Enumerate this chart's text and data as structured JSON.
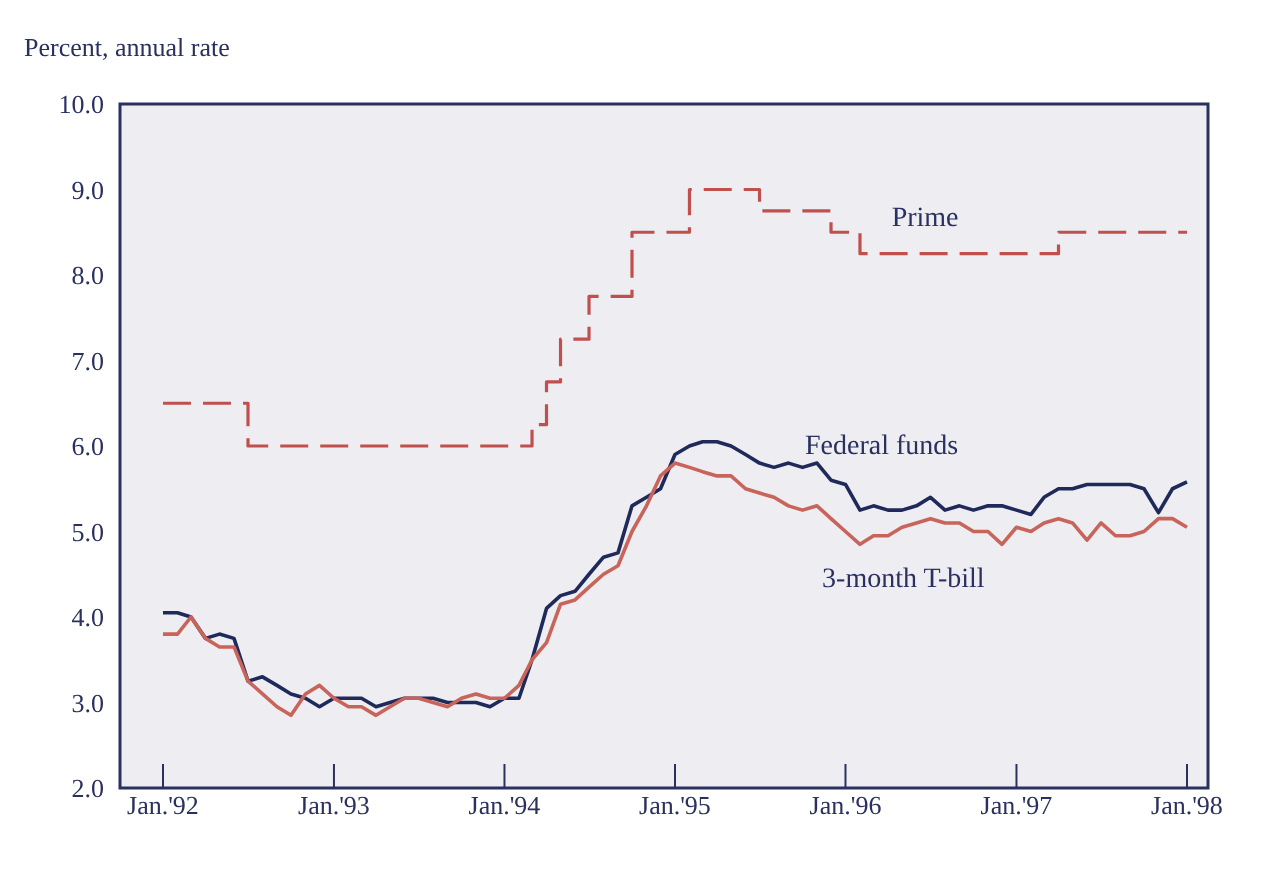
{
  "chart_data": {
    "type": "line",
    "ylabel": "Percent, annual rate",
    "xlim": [
      "1991-10-01",
      "1998-02-15"
    ],
    "xticks": [
      {
        "value": "1992-01",
        "label": "Jan.'92"
      },
      {
        "value": "1993-01",
        "label": "Jan.'93"
      },
      {
        "value": "1994-01",
        "label": "Jan.'94"
      },
      {
        "value": "1995-01",
        "label": "Jan.'95"
      },
      {
        "value": "1996-01",
        "label": "Jan.'96"
      },
      {
        "value": "1997-01",
        "label": "Jan.'97"
      },
      {
        "value": "1998-01",
        "label": "Jan.'98"
      }
    ],
    "ylim": [
      2,
      10
    ],
    "yticks": [
      {
        "value": 2,
        "label": "2.0"
      },
      {
        "value": 3,
        "label": "3.0"
      },
      {
        "value": 4,
        "label": "4.0"
      },
      {
        "value": 5,
        "label": "5.0"
      },
      {
        "value": 6,
        "label": "6.0"
      },
      {
        "value": 7,
        "label": "7.0"
      },
      {
        "value": 8,
        "label": "8.0"
      },
      {
        "value": 9,
        "label": "9.0"
      },
      {
        "value": 10,
        "label": "10.0"
      }
    ],
    "grid": false,
    "legend": false,
    "marker": "none",
    "series": [
      {
        "name": "Prime",
        "type": "step",
        "line_style": "dashed",
        "color": "#c0504d",
        "x": [
          "1992-01",
          "1992-07",
          "1994-03",
          "1994-04",
          "1994-05",
          "1994-07",
          "1994-10",
          "1995-02",
          "1995-07",
          "1995-12",
          "1996-02",
          "1997-04",
          "1998-01"
        ],
        "values": [
          6.5,
          6.0,
          6.25,
          6.75,
          7.25,
          7.75,
          8.5,
          9.0,
          8.75,
          8.5,
          8.25,
          8.5,
          8.5
        ]
      },
      {
        "name": "Federal funds",
        "type": "line",
        "line_style": "solid",
        "color": "#1f2a5a",
        "x": [
          "1992-01",
          "1992-02",
          "1992-03",
          "1992-04",
          "1992-05",
          "1992-06",
          "1992-07",
          "1992-08",
          "1992-09",
          "1992-10",
          "1992-11",
          "1992-12",
          "1993-01",
          "1993-02",
          "1993-03",
          "1993-04",
          "1993-05",
          "1993-06",
          "1993-07",
          "1993-08",
          "1993-09",
          "1993-10",
          "1993-11",
          "1993-12",
          "1994-01",
          "1994-02",
          "1994-03",
          "1994-04",
          "1994-05",
          "1994-06",
          "1994-07",
          "1994-08",
          "1994-09",
          "1994-10",
          "1994-11",
          "1994-12",
          "1995-01",
          "1995-02",
          "1995-03",
          "1995-04",
          "1995-05",
          "1995-06",
          "1995-07",
          "1995-08",
          "1995-09",
          "1995-10",
          "1995-11",
          "1995-12",
          "1996-01",
          "1996-02",
          "1996-03",
          "1996-04",
          "1996-05",
          "1996-06",
          "1996-07",
          "1996-08",
          "1996-09",
          "1996-10",
          "1996-11",
          "1996-12",
          "1997-01",
          "1997-02",
          "1997-03",
          "1997-04",
          "1997-05",
          "1997-06",
          "1997-07",
          "1997-08",
          "1997-09",
          "1997-10",
          "1997-11",
          "1997-12",
          "1998-01"
        ],
        "values": [
          4.05,
          4.05,
          4.0,
          3.75,
          3.8,
          3.75,
          3.25,
          3.3,
          3.2,
          3.1,
          3.05,
          2.95,
          3.05,
          3.05,
          3.05,
          2.95,
          3.0,
          3.05,
          3.05,
          3.05,
          3.0,
          3.0,
          3.0,
          2.95,
          3.05,
          3.05,
          3.5,
          4.1,
          4.25,
          4.3,
          4.5,
          4.7,
          4.75,
          5.3,
          5.4,
          5.5,
          5.9,
          6.0,
          6.05,
          6.05,
          6.0,
          5.9,
          5.8,
          5.75,
          5.8,
          5.75,
          5.8,
          5.6,
          5.55,
          5.25,
          5.3,
          5.25,
          5.25,
          5.3,
          5.4,
          5.25,
          5.3,
          5.25,
          5.3,
          5.3,
          5.25,
          5.2,
          5.4,
          5.5,
          5.5,
          5.55,
          5.55,
          5.55,
          5.55,
          5.5,
          5.22,
          5.5,
          5.58
        ]
      },
      {
        "name": "3-month T-bill",
        "type": "line",
        "line_style": "solid",
        "color": "#c8645a",
        "x": [
          "1992-01",
          "1992-02",
          "1992-03",
          "1992-04",
          "1992-05",
          "1992-06",
          "1992-07",
          "1992-08",
          "1992-09",
          "1992-10",
          "1992-11",
          "1992-12",
          "1993-01",
          "1993-02",
          "1993-03",
          "1993-04",
          "1993-05",
          "1993-06",
          "1993-07",
          "1993-08",
          "1993-09",
          "1993-10",
          "1993-11",
          "1993-12",
          "1994-01",
          "1994-02",
          "1994-03",
          "1994-04",
          "1994-05",
          "1994-06",
          "1994-07",
          "1994-08",
          "1994-09",
          "1994-10",
          "1994-11",
          "1994-12",
          "1995-01",
          "1995-02",
          "1995-03",
          "1995-04",
          "1995-05",
          "1995-06",
          "1995-07",
          "1995-08",
          "1995-09",
          "1995-10",
          "1995-11",
          "1995-12",
          "1996-01",
          "1996-02",
          "1996-03",
          "1996-04",
          "1996-05",
          "1996-06",
          "1996-07",
          "1996-08",
          "1996-09",
          "1996-10",
          "1996-11",
          "1996-12",
          "1997-01",
          "1997-02",
          "1997-03",
          "1997-04",
          "1997-05",
          "1997-06",
          "1997-07",
          "1997-08",
          "1997-09",
          "1997-10",
          "1997-11",
          "1997-12",
          "1998-01"
        ],
        "values": [
          3.8,
          3.8,
          4.0,
          3.75,
          3.65,
          3.65,
          3.25,
          3.1,
          2.95,
          2.85,
          3.1,
          3.2,
          3.05,
          2.95,
          2.95,
          2.85,
          2.95,
          3.05,
          3.05,
          3.0,
          2.95,
          3.05,
          3.1,
          3.05,
          3.05,
          3.2,
          3.5,
          3.7,
          4.15,
          4.2,
          4.35,
          4.5,
          4.6,
          5.0,
          5.3,
          5.65,
          5.8,
          5.75,
          5.7,
          5.65,
          5.65,
          5.5,
          5.45,
          5.4,
          5.3,
          5.25,
          5.3,
          5.15,
          5.0,
          4.85,
          4.95,
          4.95,
          5.05,
          5.1,
          5.15,
          5.1,
          5.1,
          5.0,
          5.0,
          4.85,
          5.05,
          5.0,
          5.1,
          5.15,
          5.1,
          4.9,
          5.1,
          4.95,
          4.95,
          5.0,
          5.15,
          5.15,
          5.05
        ]
      }
    ]
  }
}
